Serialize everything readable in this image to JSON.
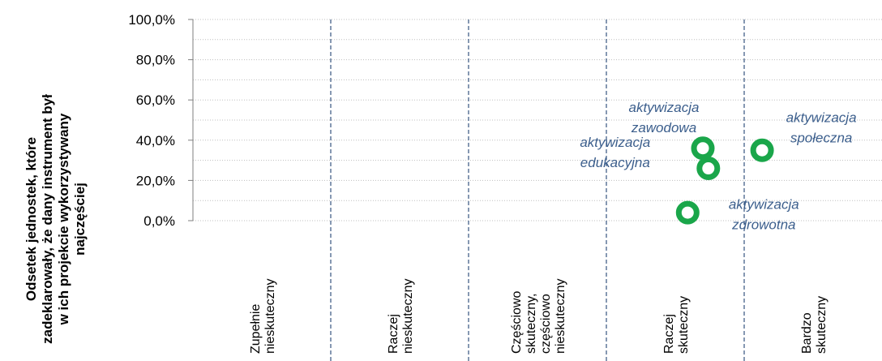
{
  "chart_data": {
    "type": "scatter",
    "title": "",
    "ylabel_lines": [
      "Odsetek jednostek, które",
      "zadeklarowały, że dany instrument był",
      "w ich projekcie wykorzystywany",
      "najczęściej"
    ],
    "ylim": [
      0,
      100
    ],
    "y_ticks": [
      "0,0%",
      "20,0%",
      "40,0%",
      "60,0%",
      "80,0%",
      "100,0%"
    ],
    "y_tick_values": [
      0,
      20,
      40,
      60,
      80,
      100
    ],
    "xlim": [
      0,
      5
    ],
    "categories": [
      {
        "lines": [
          "Zupełnie",
          "nieskuteczny"
        ]
      },
      {
        "lines": [
          "Raczej",
          "nieskuteczny"
        ]
      },
      {
        "lines": [
          "Częściowo",
          "skuteczny,",
          "częściowo",
          "nieskuteczny"
        ]
      },
      {
        "lines": [
          "Raczej",
          "skuteczny"
        ]
      },
      {
        "lines": [
          "Bardzo",
          "skuteczny"
        ]
      }
    ],
    "points": [
      {
        "lines": [
          "aktywizacja",
          "zawodowa"
        ],
        "x": 3.7,
        "y": 36
      },
      {
        "lines": [
          "aktywizacja",
          "edukacyjna"
        ],
        "x": 3.74,
        "y": 26
      },
      {
        "lines": [
          "aktywizacja",
          "społeczna"
        ],
        "x": 4.13,
        "y": 35
      },
      {
        "lines": [
          "aktywizacja",
          "zdrowotna"
        ],
        "x": 3.59,
        "y": 4
      }
    ],
    "grid": true,
    "colors": {
      "marker": "#1aa64a",
      "label": "#3b5e8c",
      "divider": "#35537f",
      "grid": "#bfbfbf"
    }
  }
}
